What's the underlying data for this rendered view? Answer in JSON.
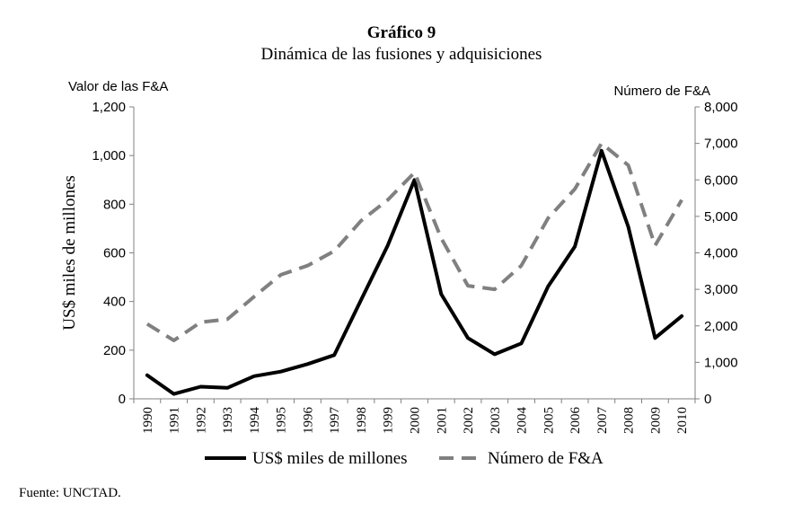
{
  "header": {
    "title": "Gráfico 9",
    "subtitle": "Dinámica de las fusiones y adquisiciones"
  },
  "footer": {
    "source": "Fuente: UNCTAD."
  },
  "chart_data": {
    "type": "line",
    "title": "Gráfico 9",
    "subtitle": "Dinámica de las fusiones y adquisiciones",
    "categories": [
      "1990",
      "1991",
      "1992",
      "1993",
      "1994",
      "1995",
      "1996",
      "1997",
      "1998",
      "1999",
      "2000",
      "2001",
      "2002",
      "2003",
      "2004",
      "2005",
      "2006",
      "2007",
      "2008",
      "2009",
      "2010"
    ],
    "left_axis": {
      "caption": "Valor de las F&A",
      "label": "US$ miles de millones",
      "range": [
        0,
        1200
      ],
      "ticks": [
        "0",
        "200",
        "400",
        "600",
        "800",
        "1,000",
        "1,200"
      ]
    },
    "right_axis": {
      "caption": "Número de  F&A",
      "range": [
        0,
        8000
      ],
      "ticks": [
        "0",
        "1,000",
        "2,000",
        "3,000",
        "4,000",
        "5,000",
        "6,000",
        "7,000",
        "8,000"
      ]
    },
    "series": [
      {
        "name": "US$ miles de millones",
        "axis": "left",
        "style": "solid",
        "color": "#000000",
        "values": [
          97,
          20,
          50,
          45,
          93,
          112,
          143,
          180,
          406,
          630,
          900,
          430,
          250,
          183,
          228,
          462,
          626,
          1020,
          707,
          250,
          340
        ]
      },
      {
        "name": "Número de F&A",
        "axis": "right",
        "style": "dashed",
        "color": "#808080",
        "values": [
          2050,
          1600,
          2100,
          2180,
          2800,
          3400,
          3650,
          4050,
          4880,
          5450,
          6200,
          4400,
          3100,
          3000,
          3650,
          4950,
          5750,
          7000,
          6400,
          4200,
          5450
        ]
      }
    ],
    "legend_position": "bottom",
    "grid": false
  }
}
